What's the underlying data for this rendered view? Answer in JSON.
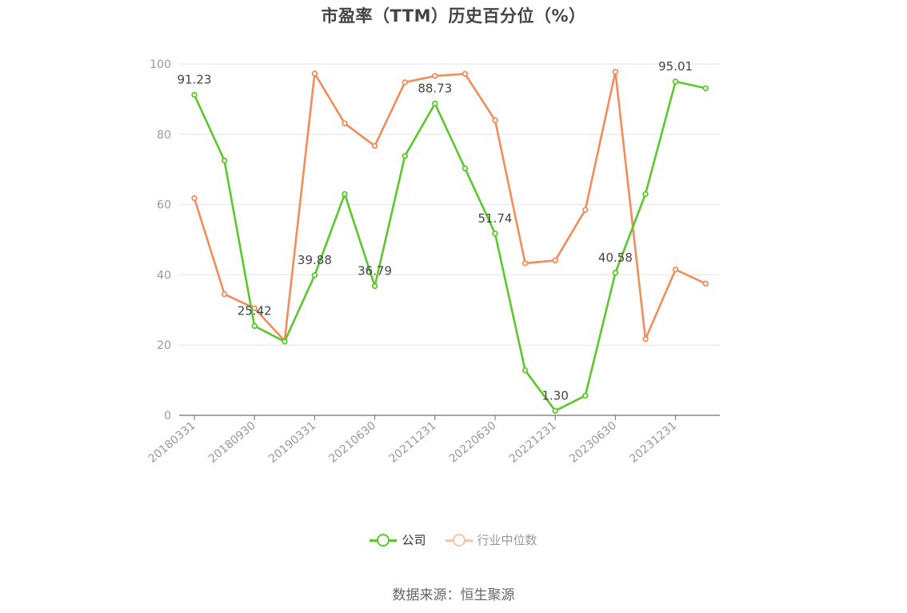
{
  "chart_data": {
    "type": "line",
    "title": "市盈率（TTM）历史百分位（%）",
    "xlabel": "",
    "ylabel": "",
    "ylim": [
      0,
      100
    ],
    "yticks": [
      0,
      20,
      40,
      60,
      80,
      100
    ],
    "grid": true,
    "legend_position": "bottom-center",
    "x": [
      "20180331",
      "20180630",
      "20180930",
      "20181231",
      "20190331",
      "20190630",
      "20210630",
      "20210930",
      "20211231",
      "20220331",
      "20220630",
      "20220930",
      "20221231",
      "20230331",
      "20230630",
      "20230930",
      "20231231",
      "20240331"
    ],
    "x_tick_labels": [
      "20180331",
      "20180930",
      "20190331",
      "20210630",
      "20211231",
      "20220630",
      "20221231",
      "20230630",
      "20231231"
    ],
    "x_tick_indices": [
      0,
      2,
      4,
      6,
      8,
      10,
      12,
      14,
      16
    ],
    "series": [
      {
        "name": "公司",
        "color": "#5ac82b",
        "values": [
          91.23,
          72.5,
          25.42,
          21.0,
          39.88,
          63.0,
          36.79,
          73.8,
          88.73,
          70.3,
          51.74,
          12.8,
          1.3,
          5.6,
          40.58,
          63.0,
          95.01,
          93.1
        ],
        "labels": {
          "0": "91.23",
          "2": "25.42",
          "4": "39.88",
          "6": "36.79",
          "8": "88.73",
          "10": "51.74",
          "12": "1.30",
          "14": "40.58",
          "16": "95.01"
        }
      },
      {
        "name": "行业中位数",
        "color": "#f28c5b",
        "values": [
          61.8,
          34.5,
          30.5,
          21.2,
          97.3,
          83.1,
          76.7,
          94.8,
          96.6,
          97.2,
          84.0,
          43.3,
          44.1,
          58.5,
          97.8,
          21.7,
          41.5,
          37.5
        ]
      }
    ]
  },
  "source_text": "数据来源：恒生聚源",
  "colors": {
    "axis": "#6e7079",
    "grid": "#e0e6f1",
    "tick_text": "#999999",
    "label_text": "#444444"
  }
}
